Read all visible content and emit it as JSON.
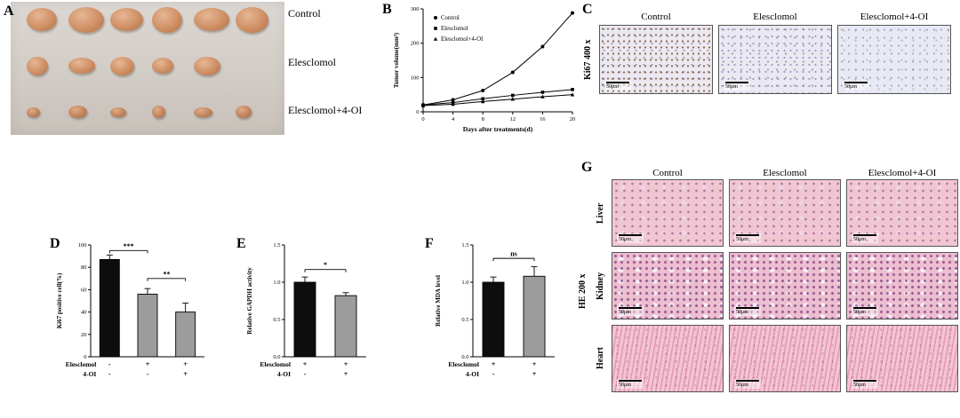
{
  "panels": {
    "A": {
      "label": "A",
      "photo_rows": [
        {
          "label": "Control",
          "count": 6,
          "size": "large"
        },
        {
          "label": "Elesclomol",
          "count": 5,
          "size": "medium"
        },
        {
          "label": "Elesclomol+4-OI",
          "count": 6,
          "size": "small"
        }
      ]
    },
    "B": {
      "label": "B"
    },
    "C": {
      "label": "C",
      "row_label": "Ki67 400 x",
      "columns": [
        "Control",
        "Elesclomol",
        "Elesclomol+4-OI"
      ],
      "scale_bar": "50μm"
    },
    "D": {
      "label": "D"
    },
    "E": {
      "label": "E"
    },
    "F": {
      "label": "F"
    },
    "G": {
      "label": "G",
      "group_label": "HE 200 x",
      "columns": [
        "Control",
        "Elesclomol",
        "Elesclomol+4-OI"
      ],
      "rows": [
        "Liver",
        "Kidney",
        "Heart"
      ],
      "scale_bar": "50μm"
    }
  },
  "chart_data": [
    {
      "panel": "B",
      "type": "line",
      "title": "",
      "xlabel": "Days after treatments(d)",
      "ylabel": "Tumor volume(mm³)",
      "xlim": [
        0,
        20
      ],
      "ylim": [
        0,
        300
      ],
      "xticks": [
        0,
        4,
        8,
        12,
        16,
        20
      ],
      "yticks": [
        0,
        100,
        200,
        300
      ],
      "x": [
        0,
        4,
        8,
        12,
        16,
        20
      ],
      "legend_position": "top-left",
      "grid": false,
      "series": [
        {
          "name": "Control",
          "marker": "circle",
          "values": [
            20,
            35,
            62,
            115,
            190,
            288
          ]
        },
        {
          "name": "Elesclomol",
          "marker": "square",
          "values": [
            20,
            27,
            38,
            48,
            57,
            65
          ]
        },
        {
          "name": "Elesclomol+4-OI",
          "marker": "triangle",
          "values": [
            18,
            22,
            30,
            37,
            44,
            50
          ]
        }
      ]
    },
    {
      "panel": "D",
      "type": "bar",
      "ylabel": "Ki67 positive cell(%)",
      "ylim": [
        0,
        100
      ],
      "yticks": [
        0,
        20,
        40,
        60,
        80,
        100
      ],
      "ytick_labels": [
        "0",
        "20",
        "40",
        "60",
        "80",
        "100"
      ],
      "values": [
        87,
        56,
        40
      ],
      "errors": [
        4,
        5,
        8
      ],
      "bar_colors": [
        "#0d0d0d",
        "#9c9c9c",
        "#9c9c9c"
      ],
      "x_rows": [
        {
          "label": "Elesclomol",
          "values": [
            "-",
            "+",
            "+"
          ]
        },
        {
          "label": "4-OI",
          "values": [
            "-",
            "-",
            "+"
          ]
        }
      ],
      "significance": [
        {
          "from": 0,
          "to": 1,
          "label": "***",
          "y": 95
        },
        {
          "from": 1,
          "to": 2,
          "label": "**",
          "y": 70
        }
      ]
    },
    {
      "panel": "E",
      "type": "bar",
      "ylabel": "Relative GAPDH activity",
      "ylim": [
        0,
        1.5
      ],
      "yticks": [
        0,
        0.5,
        1.0,
        1.5
      ],
      "ytick_labels": [
        "0.0",
        "0.5",
        "1.0",
        "1.5"
      ],
      "values": [
        1.0,
        0.82
      ],
      "errors": [
        0.07,
        0.04
      ],
      "bar_colors": [
        "#0d0d0d",
        "#9c9c9c"
      ],
      "x_rows": [
        {
          "label": "Elesclomol",
          "values": [
            "+",
            "+"
          ]
        },
        {
          "label": "4-OI",
          "values": [
            "-",
            "+"
          ]
        }
      ],
      "significance": [
        {
          "from": 0,
          "to": 1,
          "label": "*",
          "y": 1.17
        }
      ]
    },
    {
      "panel": "F",
      "type": "bar",
      "ylabel": "Relative MDA level",
      "ylim": [
        0,
        1.5
      ],
      "yticks": [
        0,
        0.5,
        1.0,
        1.5
      ],
      "ytick_labels": [
        "0.0",
        "0.5",
        "1.0",
        "1.5"
      ],
      "values": [
        1.0,
        1.08
      ],
      "errors": [
        0.07,
        0.13
      ],
      "bar_colors": [
        "#0d0d0d",
        "#9c9c9c"
      ],
      "x_rows": [
        {
          "label": "Elesclomol",
          "values": [
            "+",
            "+"
          ]
        },
        {
          "label": "4-OI",
          "values": [
            "-",
            "+"
          ]
        }
      ],
      "significance": [
        {
          "from": 0,
          "to": 1,
          "label": "ns",
          "y": 1.32
        }
      ]
    }
  ]
}
